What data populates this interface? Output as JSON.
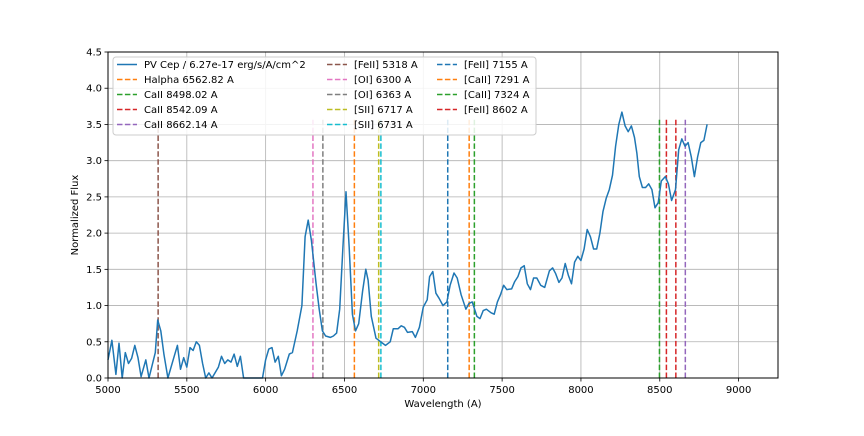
{
  "chart_data": {
    "type": "line",
    "title": "",
    "xlabel": "Wavelength (A)",
    "ylabel": "Normalized Flux",
    "xlim": [
      5000,
      9250
    ],
    "ylim": [
      0,
      4.5
    ],
    "xticks": [
      5000,
      5500,
      6000,
      6500,
      7000,
      7500,
      8000,
      8500,
      9000
    ],
    "yticks": [
      0.0,
      0.5,
      1.0,
      1.5,
      2.0,
      2.5,
      3.0,
      3.5,
      4.0,
      4.5
    ],
    "grid": true,
    "legend_position": "top-left",
    "spectrum": {
      "name": "PV Cep / 6.27e-17 erg/s/A/cm^2",
      "color": "#1f77b4",
      "points": [
        [
          5000,
          0.25
        ],
        [
          5025,
          0.52
        ],
        [
          5050,
          0.05
        ],
        [
          5070,
          0.48
        ],
        [
          5090,
          0.0
        ],
        [
          5110,
          0.35
        ],
        [
          5130,
          0.2
        ],
        [
          5150,
          0.27
        ],
        [
          5170,
          0.45
        ],
        [
          5190,
          0.28
        ],
        [
          5210,
          0.02
        ],
        [
          5240,
          0.25
        ],
        [
          5260,
          0.0
        ],
        [
          5300,
          0.35
        ],
        [
          5315,
          0.8
        ],
        [
          5335,
          0.65
        ],
        [
          5355,
          0.32
        ],
        [
          5380,
          0.0
        ],
        [
          5420,
          0.3
        ],
        [
          5440,
          0.45
        ],
        [
          5460,
          0.12
        ],
        [
          5480,
          0.28
        ],
        [
          5500,
          0.15
        ],
        [
          5520,
          0.42
        ],
        [
          5540,
          0.38
        ],
        [
          5560,
          0.5
        ],
        [
          5580,
          0.45
        ],
        [
          5600,
          0.2
        ],
        [
          5620,
          0.0
        ],
        [
          5640,
          0.07
        ],
        [
          5660,
          0.0
        ],
        [
          5700,
          0.15
        ],
        [
          5720,
          0.3
        ],
        [
          5740,
          0.2
        ],
        [
          5760,
          0.25
        ],
        [
          5780,
          0.22
        ],
        [
          5800,
          0.33
        ],
        [
          5820,
          0.16
        ],
        [
          5840,
          0.3
        ],
        [
          5860,
          0.0
        ],
        [
          5980,
          0.0
        ],
        [
          6000,
          0.25
        ],
        [
          6020,
          0.4
        ],
        [
          6040,
          0.42
        ],
        [
          6060,
          0.22
        ],
        [
          6080,
          0.3
        ],
        [
          6100,
          0.03
        ],
        [
          6120,
          0.12
        ],
        [
          6150,
          0.33
        ],
        [
          6170,
          0.35
        ],
        [
          6200,
          0.65
        ],
        [
          6230,
          1.0
        ],
        [
          6250,
          1.95
        ],
        [
          6270,
          2.18
        ],
        [
          6290,
          1.9
        ],
        [
          6320,
          1.3
        ],
        [
          6340,
          0.95
        ],
        [
          6360,
          0.65
        ],
        [
          6380,
          0.58
        ],
        [
          6410,
          0.56
        ],
        [
          6430,
          0.58
        ],
        [
          6450,
          0.62
        ],
        [
          6470,
          0.95
        ],
        [
          6490,
          1.8
        ],
        [
          6510,
          2.57
        ],
        [
          6530,
          1.8
        ],
        [
          6550,
          0.88
        ],
        [
          6570,
          0.65
        ],
        [
          6590,
          0.75
        ],
        [
          6615,
          1.2
        ],
        [
          6635,
          1.5
        ],
        [
          6650,
          1.35
        ],
        [
          6670,
          0.85
        ],
        [
          6700,
          0.55
        ],
        [
          6730,
          0.5
        ],
        [
          6760,
          0.45
        ],
        [
          6790,
          0.5
        ],
        [
          6810,
          0.68
        ],
        [
          6840,
          0.68
        ],
        [
          6860,
          0.72
        ],
        [
          6880,
          0.7
        ],
        [
          6900,
          0.63
        ],
        [
          6930,
          0.64
        ],
        [
          6950,
          0.56
        ],
        [
          6975,
          0.7
        ],
        [
          7000,
          0.98
        ],
        [
          7025,
          1.08
        ],
        [
          7040,
          1.4
        ],
        [
          7060,
          1.47
        ],
        [
          7080,
          1.17
        ],
        [
          7100,
          1.1
        ],
        [
          7125,
          1.0
        ],
        [
          7150,
          1.05
        ],
        [
          7170,
          1.28
        ],
        [
          7195,
          1.45
        ],
        [
          7215,
          1.38
        ],
        [
          7240,
          1.15
        ],
        [
          7270,
          0.95
        ],
        [
          7290,
          1.03
        ],
        [
          7310,
          1.05
        ],
        [
          7340,
          0.85
        ],
        [
          7360,
          0.82
        ],
        [
          7380,
          0.93
        ],
        [
          7400,
          0.95
        ],
        [
          7430,
          0.9
        ],
        [
          7450,
          0.88
        ],
        [
          7470,
          1.05
        ],
        [
          7490,
          1.15
        ],
        [
          7510,
          1.28
        ],
        [
          7530,
          1.22
        ],
        [
          7560,
          1.23
        ],
        [
          7580,
          1.33
        ],
        [
          7600,
          1.4
        ],
        [
          7620,
          1.52
        ],
        [
          7640,
          1.55
        ],
        [
          7660,
          1.3
        ],
        [
          7680,
          1.22
        ],
        [
          7700,
          1.38
        ],
        [
          7720,
          1.38
        ],
        [
          7745,
          1.28
        ],
        [
          7770,
          1.25
        ],
        [
          7800,
          1.48
        ],
        [
          7820,
          1.52
        ],
        [
          7840,
          1.44
        ],
        [
          7860,
          1.32
        ],
        [
          7880,
          1.38
        ],
        [
          7900,
          1.58
        ],
        [
          7920,
          1.42
        ],
        [
          7940,
          1.3
        ],
        [
          7960,
          1.6
        ],
        [
          7980,
          1.68
        ],
        [
          8000,
          1.62
        ],
        [
          8020,
          1.78
        ],
        [
          8040,
          2.05
        ],
        [
          8060,
          1.95
        ],
        [
          8080,
          1.78
        ],
        [
          8100,
          1.78
        ],
        [
          8120,
          2.0
        ],
        [
          8140,
          2.3
        ],
        [
          8160,
          2.48
        ],
        [
          8180,
          2.6
        ],
        [
          8200,
          2.8
        ],
        [
          8220,
          3.2
        ],
        [
          8240,
          3.5
        ],
        [
          8260,
          3.67
        ],
        [
          8280,
          3.48
        ],
        [
          8300,
          3.4
        ],
        [
          8320,
          3.48
        ],
        [
          8340,
          3.32
        ],
        [
          8355,
          3.1
        ],
        [
          8370,
          2.78
        ],
        [
          8390,
          2.63
        ],
        [
          8410,
          2.63
        ],
        [
          8430,
          2.68
        ],
        [
          8450,
          2.6
        ],
        [
          8470,
          2.35
        ],
        [
          8490,
          2.42
        ],
        [
          8510,
          2.72
        ],
        [
          8535,
          2.78
        ],
        [
          8555,
          2.68
        ],
        [
          8575,
          2.45
        ],
        [
          8600,
          2.6
        ],
        [
          8620,
          3.15
        ],
        [
          8640,
          3.3
        ],
        [
          8660,
          3.2
        ],
        [
          8680,
          3.25
        ],
        [
          8700,
          3.05
        ],
        [
          8720,
          2.78
        ],
        [
          8740,
          3.05
        ],
        [
          8760,
          3.25
        ],
        [
          8780,
          3.28
        ],
        [
          8800,
          3.5
        ]
      ]
    },
    "lines": [
      {
        "name": "Halpha 6562.82 A",
        "wavelength": 6562.82,
        "color": "#ff7f0e"
      },
      {
        "name": "CaII 8498.02 A",
        "wavelength": 8498.02,
        "color": "#2ca02c"
      },
      {
        "name": "CaII 8542.09 A",
        "wavelength": 8542.09,
        "color": "#d62728"
      },
      {
        "name": "CaII 8662.14 A",
        "wavelength": 8662.14,
        "color": "#9467bd"
      },
      {
        "name": "[FeII] 5318 A",
        "wavelength": 5318,
        "color": "#8c564b"
      },
      {
        "name": "[OI] 6300 A",
        "wavelength": 6300,
        "color": "#e377c2"
      },
      {
        "name": "[OI] 6363 A",
        "wavelength": 6363,
        "color": "#7f7f7f"
      },
      {
        "name": "[SII] 6717 A",
        "wavelength": 6717,
        "color": "#bcbd22"
      },
      {
        "name": "[SII] 6731 A",
        "wavelength": 6731,
        "color": "#17becf"
      },
      {
        "name": "[FeII] 7155 A",
        "wavelength": 7155,
        "color": "#1f77b4"
      },
      {
        "name": "[CaII] 7291 A",
        "wavelength": 7291,
        "color": "#ff7f0e"
      },
      {
        "name": "[CaII] 7324 A",
        "wavelength": 7324,
        "color": "#2ca02c"
      },
      {
        "name": "[FeII] 8602 A",
        "wavelength": 8602,
        "color": "#d62728"
      }
    ],
    "line_marker_top": 3.6
  }
}
